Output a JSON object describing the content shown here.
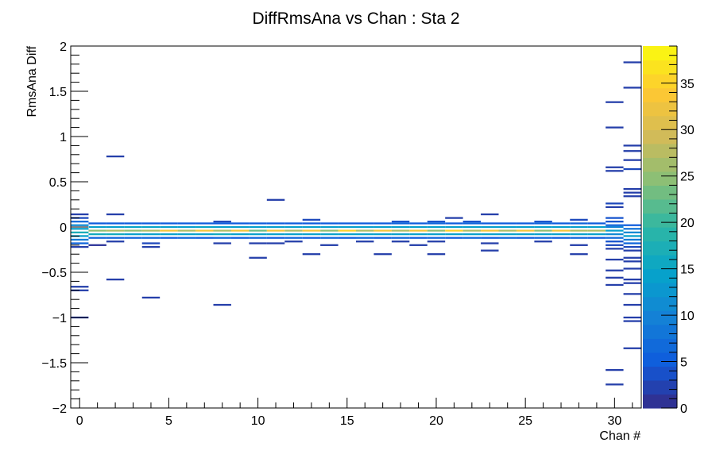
{
  "chart_data": {
    "type": "heatmap",
    "title": "DiffRmsAna vs Chan : Sta 2",
    "xlabel": "Chan #",
    "ylabel": "RmsAna Diff",
    "xlim": [
      -0.5,
      31.5
    ],
    "ylim": [
      -2,
      2
    ],
    "x_ticks": [
      "0",
      "5",
      "10",
      "15",
      "20",
      "25",
      "30"
    ],
    "y_ticks": [
      "−2",
      "−1.5",
      "−1",
      "−0.5",
      "0",
      "0.5",
      "1",
      "1.5",
      "2"
    ],
    "colorbar": {
      "min": 0,
      "max": 39,
      "ticks": [
        "0",
        "5",
        "10",
        "15",
        "20",
        "25",
        "30",
        "35"
      ]
    },
    "grid": false,
    "bin_width_y": 0.02,
    "cells": [
      [
        0,
        0.06,
        7
      ],
      [
        0,
        0.02,
        11
      ],
      [
        0,
        -0.02,
        14
      ],
      [
        0,
        -0.06,
        17
      ],
      [
        0,
        -0.1,
        14
      ],
      [
        0,
        -0.14,
        9
      ],
      [
        0,
        -0.18,
        6
      ],
      [
        0,
        0.1,
        3
      ],
      [
        0,
        0.14,
        2
      ],
      [
        0,
        -0.22,
        2
      ],
      [
        0,
        -0.66,
        2
      ],
      [
        0,
        -0.7,
        2
      ],
      [
        0,
        -1.0,
        2
      ],
      [
        1,
        0.04,
        5
      ],
      [
        1,
        0.0,
        14
      ],
      [
        1,
        -0.04,
        25
      ],
      [
        1,
        -0.08,
        16
      ],
      [
        1,
        -0.12,
        6
      ],
      [
        1,
        -0.2,
        1
      ],
      [
        2,
        0.04,
        5
      ],
      [
        2,
        0.0,
        14
      ],
      [
        2,
        -0.04,
        27
      ],
      [
        2,
        -0.08,
        16
      ],
      [
        2,
        -0.12,
        6
      ],
      [
        2,
        -0.16,
        2
      ],
      [
        2,
        0.14,
        2
      ],
      [
        2,
        0.78,
        2
      ],
      [
        2,
        -0.58,
        2
      ],
      [
        3,
        0.04,
        5
      ],
      [
        3,
        0.0,
        15
      ],
      [
        3,
        -0.04,
        25
      ],
      [
        3,
        -0.08,
        14
      ],
      [
        3,
        -0.12,
        6
      ],
      [
        4,
        0.04,
        5
      ],
      [
        4,
        0.0,
        15
      ],
      [
        4,
        -0.04,
        27
      ],
      [
        4,
        -0.08,
        14
      ],
      [
        4,
        -0.12,
        6
      ],
      [
        4,
        -0.18,
        3
      ],
      [
        4,
        -0.22,
        2
      ],
      [
        4,
        -0.78,
        2
      ],
      [
        5,
        0.04,
        5
      ],
      [
        5,
        0.0,
        14
      ],
      [
        5,
        -0.04,
        33
      ],
      [
        5,
        -0.08,
        14
      ],
      [
        5,
        -0.12,
        5
      ],
      [
        6,
        0.04,
        5
      ],
      [
        6,
        0.0,
        14
      ],
      [
        6,
        -0.04,
        27
      ],
      [
        6,
        -0.08,
        14
      ],
      [
        6,
        -0.12,
        6
      ],
      [
        7,
        0.04,
        5
      ],
      [
        7,
        0.0,
        15
      ],
      [
        7,
        -0.04,
        33
      ],
      [
        7,
        -0.08,
        14
      ],
      [
        7,
        -0.12,
        5
      ],
      [
        8,
        0.06,
        3
      ],
      [
        8,
        0.04,
        5
      ],
      [
        8,
        0.0,
        14
      ],
      [
        8,
        -0.04,
        27
      ],
      [
        8,
        -0.08,
        16
      ],
      [
        8,
        -0.12,
        6
      ],
      [
        8,
        -0.18,
        2
      ],
      [
        8,
        -0.86,
        2
      ],
      [
        9,
        0.04,
        5
      ],
      [
        9,
        0.0,
        14
      ],
      [
        9,
        -0.04,
        33
      ],
      [
        9,
        -0.08,
        14
      ],
      [
        9,
        -0.12,
        5
      ],
      [
        10,
        0.04,
        5
      ],
      [
        10,
        0.0,
        14
      ],
      [
        10,
        -0.04,
        23
      ],
      [
        10,
        -0.08,
        14
      ],
      [
        10,
        -0.12,
        6
      ],
      [
        10,
        -0.18,
        2
      ],
      [
        10,
        -0.34,
        2
      ],
      [
        11,
        0.04,
        5
      ],
      [
        11,
        0.0,
        14
      ],
      [
        11,
        -0.04,
        33
      ],
      [
        11,
        -0.08,
        14
      ],
      [
        11,
        -0.12,
        5
      ],
      [
        11,
        -0.18,
        2
      ],
      [
        11,
        0.3,
        2
      ],
      [
        12,
        0.04,
        5
      ],
      [
        12,
        0.0,
        14
      ],
      [
        12,
        -0.04,
        27
      ],
      [
        12,
        -0.08,
        14
      ],
      [
        12,
        -0.12,
        6
      ],
      [
        12,
        -0.16,
        2
      ],
      [
        13,
        0.08,
        3
      ],
      [
        13,
        0.04,
        5
      ],
      [
        13,
        0.0,
        14
      ],
      [
        13,
        -0.04,
        33
      ],
      [
        13,
        -0.08,
        14
      ],
      [
        13,
        -0.12,
        5
      ],
      [
        13,
        -0.3,
        2
      ],
      [
        14,
        0.04,
        5
      ],
      [
        14,
        0.0,
        14
      ],
      [
        14,
        -0.04,
        25
      ],
      [
        14,
        -0.08,
        14
      ],
      [
        14,
        -0.12,
        6
      ],
      [
        14,
        -0.2,
        2
      ],
      [
        15,
        0.04,
        5
      ],
      [
        15,
        0.0,
        14
      ],
      [
        15,
        -0.04,
        35
      ],
      [
        15,
        -0.08,
        14
      ],
      [
        15,
        -0.12,
        5
      ],
      [
        16,
        0.04,
        5
      ],
      [
        16,
        0.0,
        14
      ],
      [
        16,
        -0.04,
        27
      ],
      [
        16,
        -0.08,
        14
      ],
      [
        16,
        -0.12,
        6
      ],
      [
        16,
        -0.16,
        2
      ],
      [
        17,
        0.04,
        5
      ],
      [
        17,
        0.0,
        14
      ],
      [
        17,
        -0.04,
        33
      ],
      [
        17,
        -0.08,
        14
      ],
      [
        17,
        -0.12,
        5
      ],
      [
        17,
        -0.3,
        2
      ],
      [
        18,
        0.06,
        4
      ],
      [
        18,
        0.04,
        6
      ],
      [
        18,
        0.0,
        14
      ],
      [
        18,
        -0.04,
        27
      ],
      [
        18,
        -0.08,
        14
      ],
      [
        18,
        -0.12,
        6
      ],
      [
        18,
        -0.16,
        2
      ],
      [
        19,
        0.04,
        5
      ],
      [
        19,
        0.0,
        14
      ],
      [
        19,
        -0.04,
        33
      ],
      [
        19,
        -0.08,
        14
      ],
      [
        19,
        -0.12,
        5
      ],
      [
        19,
        -0.2,
        2
      ],
      [
        20,
        0.06,
        4
      ],
      [
        20,
        0.04,
        6
      ],
      [
        20,
        0.0,
        14
      ],
      [
        20,
        -0.04,
        25
      ],
      [
        20,
        -0.08,
        14
      ],
      [
        20,
        -0.12,
        6
      ],
      [
        20,
        -0.16,
        2
      ],
      [
        20,
        -0.3,
        2
      ],
      [
        21,
        0.1,
        2
      ],
      [
        21,
        0.04,
        5
      ],
      [
        21,
        0.0,
        14
      ],
      [
        21,
        -0.04,
        35
      ],
      [
        21,
        -0.08,
        14
      ],
      [
        21,
        -0.12,
        5
      ],
      [
        22,
        0.06,
        4
      ],
      [
        22,
        0.04,
        6
      ],
      [
        22,
        0.0,
        14
      ],
      [
        22,
        -0.04,
        27
      ],
      [
        22,
        -0.08,
        14
      ],
      [
        22,
        -0.12,
        6
      ],
      [
        23,
        0.14,
        2
      ],
      [
        23,
        0.04,
        5
      ],
      [
        23,
        0.0,
        14
      ],
      [
        23,
        -0.04,
        33
      ],
      [
        23,
        -0.08,
        14
      ],
      [
        23,
        -0.12,
        5
      ],
      [
        23,
        -0.18,
        2
      ],
      [
        23,
        -0.26,
        2
      ],
      [
        24,
        0.04,
        5
      ],
      [
        24,
        0.0,
        14
      ],
      [
        24,
        -0.04,
        27
      ],
      [
        24,
        -0.08,
        14
      ],
      [
        24,
        -0.12,
        6
      ],
      [
        25,
        0.04,
        5
      ],
      [
        25,
        0.0,
        14
      ],
      [
        25,
        -0.04,
        33
      ],
      [
        25,
        -0.08,
        14
      ],
      [
        25,
        -0.12,
        5
      ],
      [
        26,
        0.06,
        4
      ],
      [
        26,
        0.04,
        6
      ],
      [
        26,
        0.0,
        14
      ],
      [
        26,
        -0.04,
        25
      ],
      [
        26,
        -0.08,
        14
      ],
      [
        26,
        -0.12,
        6
      ],
      [
        26,
        -0.16,
        2
      ],
      [
        27,
        0.04,
        5
      ],
      [
        27,
        0.0,
        14
      ],
      [
        27,
        -0.04,
        33
      ],
      [
        27,
        -0.08,
        14
      ],
      [
        27,
        -0.12,
        5
      ],
      [
        28,
        0.08,
        3
      ],
      [
        28,
        0.04,
        6
      ],
      [
        28,
        0.0,
        14
      ],
      [
        28,
        -0.04,
        27
      ],
      [
        28,
        -0.08,
        14
      ],
      [
        28,
        -0.12,
        6
      ],
      [
        28,
        -0.2,
        2
      ],
      [
        28,
        -0.3,
        2
      ],
      [
        29,
        0.04,
        5
      ],
      [
        29,
        0.0,
        14
      ],
      [
        29,
        -0.04,
        27
      ],
      [
        29,
        -0.08,
        14
      ],
      [
        29,
        -0.12,
        5
      ],
      [
        30,
        0.26,
        3
      ],
      [
        30,
        0.22,
        2
      ],
      [
        30,
        0.1,
        4
      ],
      [
        30,
        0.06,
        4
      ],
      [
        30,
        0.02,
        6
      ],
      [
        30,
        0.0,
        10
      ],
      [
        30,
        -0.04,
        14
      ],
      [
        30,
        -0.08,
        11
      ],
      [
        30,
        -0.12,
        7
      ],
      [
        30,
        -0.16,
        4
      ],
      [
        30,
        -0.2,
        3
      ],
      [
        30,
        -0.24,
        2
      ],
      [
        30,
        -0.36,
        2
      ],
      [
        30,
        -0.48,
        2
      ],
      [
        30,
        -0.56,
        2
      ],
      [
        30,
        -0.64,
        2
      ],
      [
        30,
        0.62,
        2
      ],
      [
        30,
        0.66,
        2
      ],
      [
        30,
        1.1,
        2
      ],
      [
        30,
        1.38,
        2
      ],
      [
        30,
        -1.58,
        2
      ],
      [
        30,
        -1.74,
        2
      ],
      [
        31,
        1.82,
        2
      ],
      [
        31,
        1.54,
        2
      ],
      [
        31,
        0.9,
        2
      ],
      [
        31,
        0.84,
        2
      ],
      [
        31,
        0.74,
        2
      ],
      [
        31,
        0.64,
        3
      ],
      [
        31,
        0.42,
        2
      ],
      [
        31,
        0.38,
        2
      ],
      [
        31,
        0.34,
        2
      ],
      [
        31,
        0.02,
        5
      ],
      [
        31,
        -0.02,
        8
      ],
      [
        31,
        -0.06,
        11
      ],
      [
        31,
        -0.1,
        14
      ],
      [
        31,
        -0.14,
        9
      ],
      [
        31,
        -0.18,
        6
      ],
      [
        31,
        -0.22,
        3
      ],
      [
        31,
        -0.26,
        2
      ],
      [
        31,
        -0.34,
        2
      ],
      [
        31,
        -0.38,
        2
      ],
      [
        31,
        -0.46,
        2
      ],
      [
        31,
        -0.58,
        2
      ],
      [
        31,
        -0.62,
        2
      ],
      [
        31,
        -0.74,
        2
      ],
      [
        31,
        -0.86,
        2
      ],
      [
        31,
        -1.0,
        2
      ],
      [
        31,
        -1.04,
        2
      ],
      [
        31,
        -1.34,
        2
      ]
    ]
  }
}
